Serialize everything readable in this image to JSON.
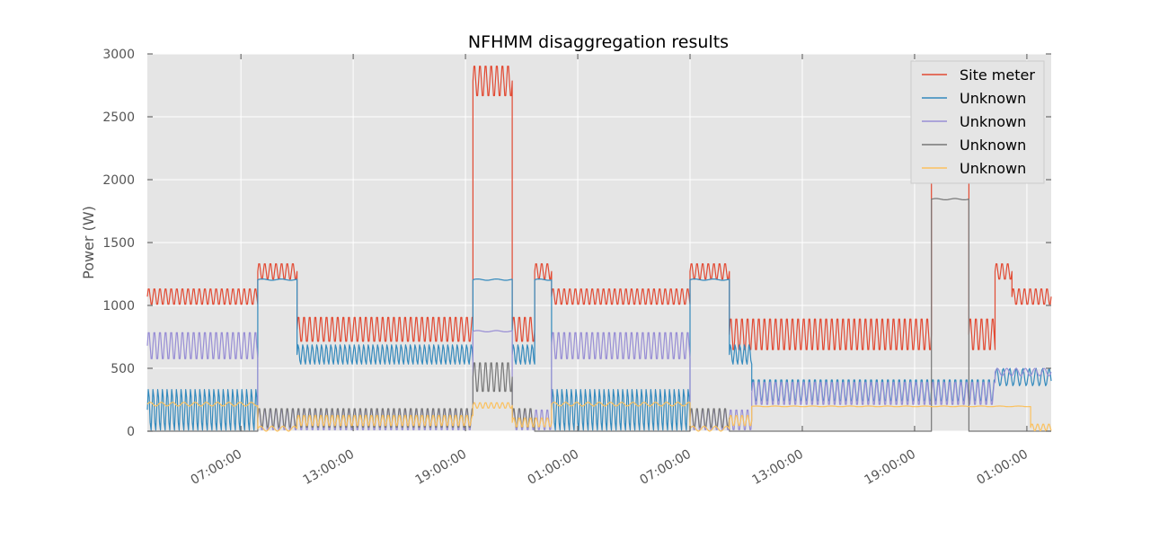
{
  "chart_data": {
    "type": "line",
    "title": "NFHMM disaggregation results",
    "xlabel": "",
    "ylabel": "Power (W)",
    "ylim": [
      0,
      3000
    ],
    "yticks": [
      0,
      500,
      1000,
      1500,
      2000,
      2500,
      3000
    ],
    "xlim": [
      2.0,
      50.3
    ],
    "xticks": [
      {
        "x": 7,
        "label": "07:00:00"
      },
      {
        "x": 13,
        "label": "13:00:00"
      },
      {
        "x": 19,
        "label": "19:00:00"
      },
      {
        "x": 25,
        "label": "01:00:00"
      },
      {
        "x": 31,
        "label": "07:00:00"
      },
      {
        "x": 37,
        "label": "13:00:00"
      },
      {
        "x": 43,
        "label": "19:00:00"
      },
      {
        "x": 49,
        "label": "01:00:00"
      }
    ],
    "grid": true,
    "background": "#e5e5e5",
    "legend_position": "top-right",
    "series": [
      {
        "name": "Site meter",
        "color": "#e24a33",
        "segments": [
          {
            "x0": 2.0,
            "x1": 7.9,
            "low": 1000,
            "high": 1140,
            "period": 0.3
          },
          {
            "x0": 7.9,
            "x1": 10.0,
            "low": 1200,
            "high": 1340,
            "period": 0.3
          },
          {
            "x0": 10.0,
            "x1": 19.4,
            "low": 700,
            "high": 920,
            "period": 0.3
          },
          {
            "x0": 19.4,
            "x1": 21.5,
            "low": 2650,
            "high": 2920,
            "period": 0.3
          },
          {
            "x0": 21.5,
            "x1": 22.7,
            "low": 700,
            "high": 920,
            "period": 0.3
          },
          {
            "x0": 22.7,
            "x1": 23.6,
            "low": 1200,
            "high": 1340,
            "period": 0.3
          },
          {
            "x0": 23.6,
            "x1": 31.0,
            "low": 1000,
            "high": 1140,
            "period": 0.3
          },
          {
            "x0": 31.0,
            "x1": 33.1,
            "low": 1200,
            "high": 1340,
            "period": 0.3
          },
          {
            "x0": 33.1,
            "x1": 43.9,
            "low": 630,
            "high": 910,
            "period": 0.3
          },
          {
            "x0": 43.9,
            "x1": 45.9,
            "low": 2000,
            "high": 2200,
            "period": 0.3
          },
          {
            "x0": 45.9,
            "x1": 47.3,
            "low": 630,
            "high": 910,
            "period": 0.3
          },
          {
            "x0": 47.3,
            "x1": 48.2,
            "low": 1200,
            "high": 1340,
            "period": 0.3
          },
          {
            "x0": 48.2,
            "x1": 50.3,
            "low": 1000,
            "high": 1140,
            "period": 0.3
          }
        ]
      },
      {
        "name": "Unknown",
        "color": "#348abd",
        "segments": [
          {
            "x0": 2.0,
            "x1": 7.9,
            "low": 0,
            "high": 340,
            "period": 0.25
          },
          {
            "x0": 7.9,
            "x1": 10.0,
            "low": 1200,
            "high": 1210,
            "period": 1.0
          },
          {
            "x0": 10.0,
            "x1": 19.4,
            "low": 530,
            "high": 690,
            "period": 0.25
          },
          {
            "x0": 19.4,
            "x1": 21.5,
            "low": 1200,
            "high": 1210,
            "period": 1.0
          },
          {
            "x0": 21.5,
            "x1": 22.7,
            "low": 530,
            "high": 690,
            "period": 0.25
          },
          {
            "x0": 22.7,
            "x1": 23.6,
            "low": 1200,
            "high": 1210,
            "period": 1.0
          },
          {
            "x0": 23.6,
            "x1": 31.0,
            "low": 0,
            "high": 340,
            "period": 0.25
          },
          {
            "x0": 31.0,
            "x1": 33.1,
            "low": 1200,
            "high": 1210,
            "period": 1.0
          },
          {
            "x0": 33.1,
            "x1": 34.3,
            "low": 530,
            "high": 690,
            "period": 0.25
          },
          {
            "x0": 34.3,
            "x1": 47.3,
            "low": 230,
            "high": 420,
            "period": 0.3
          },
          {
            "x0": 47.3,
            "x1": 50.3,
            "low": 360,
            "high": 500,
            "period": 0.35
          }
        ]
      },
      {
        "name": "Unknown",
        "color": "#988ed5",
        "segments": [
          {
            "x0": 2.0,
            "x1": 7.9,
            "low": 560,
            "high": 800,
            "period": 0.3
          },
          {
            "x0": 7.9,
            "x1": 19.4,
            "low": 0,
            "high": 180,
            "period": 0.3
          },
          {
            "x0": 19.4,
            "x1": 21.5,
            "low": 790,
            "high": 800,
            "period": 1.0
          },
          {
            "x0": 21.5,
            "x1": 23.6,
            "low": 0,
            "high": 180,
            "period": 0.3
          },
          {
            "x0": 23.6,
            "x1": 31.0,
            "low": 560,
            "high": 800,
            "period": 0.3
          },
          {
            "x0": 31.0,
            "x1": 34.3,
            "low": 0,
            "high": 180,
            "period": 0.3
          },
          {
            "x0": 34.3,
            "x1": 47.3,
            "low": 200,
            "high": 400,
            "period": 0.3
          },
          {
            "x0": 47.3,
            "x1": 50.3,
            "low": 440,
            "high": 500,
            "period": 0.5
          }
        ]
      },
      {
        "name": "Unknown",
        "color": "#777777",
        "segments": [
          {
            "x0": 2.0,
            "x1": 7.9,
            "low": 0,
            "high": 0,
            "period": 1.0
          },
          {
            "x0": 7.9,
            "x1": 19.4,
            "low": 20,
            "high": 190,
            "period": 0.3
          },
          {
            "x0": 19.4,
            "x1": 21.5,
            "low": 300,
            "high": 560,
            "period": 0.3
          },
          {
            "x0": 21.5,
            "x1": 22.7,
            "low": 20,
            "high": 190,
            "period": 0.3
          },
          {
            "x0": 22.7,
            "x1": 31.0,
            "low": 0,
            "high": 0,
            "period": 1.0
          },
          {
            "x0": 31.0,
            "x1": 33.1,
            "low": 20,
            "high": 190,
            "period": 0.3
          },
          {
            "x0": 33.1,
            "x1": 43.9,
            "low": 0,
            "high": 0,
            "period": 1.0
          },
          {
            "x0": 43.9,
            "x1": 45.9,
            "low": 1840,
            "high": 1850,
            "period": 1.0
          },
          {
            "x0": 45.9,
            "x1": 50.3,
            "low": 0,
            "high": 0,
            "period": 1.0
          }
        ]
      },
      {
        "name": "Unknown",
        "color": "#fbc15e",
        "segments": [
          {
            "x0": 2.0,
            "x1": 7.9,
            "low": 200,
            "high": 230,
            "period": 0.6
          },
          {
            "x0": 7.9,
            "x1": 10.0,
            "low": 0,
            "high": 40,
            "period": 0.6
          },
          {
            "x0": 10.0,
            "x1": 19.4,
            "low": 40,
            "high": 130,
            "period": 0.3
          },
          {
            "x0": 19.4,
            "x1": 21.5,
            "low": 180,
            "high": 230,
            "period": 0.3
          },
          {
            "x0": 21.5,
            "x1": 23.6,
            "low": 30,
            "high": 110,
            "period": 0.3
          },
          {
            "x0": 23.6,
            "x1": 31.0,
            "low": 200,
            "high": 230,
            "period": 0.6
          },
          {
            "x0": 31.0,
            "x1": 33.1,
            "low": 0,
            "high": 40,
            "period": 0.6
          },
          {
            "x0": 33.1,
            "x1": 34.3,
            "low": 40,
            "high": 130,
            "period": 0.3
          },
          {
            "x0": 34.3,
            "x1": 49.2,
            "low": 195,
            "high": 200,
            "period": 1.0
          },
          {
            "x0": 49.2,
            "x1": 50.3,
            "low": 0,
            "high": 60,
            "period": 0.3
          }
        ]
      }
    ]
  }
}
